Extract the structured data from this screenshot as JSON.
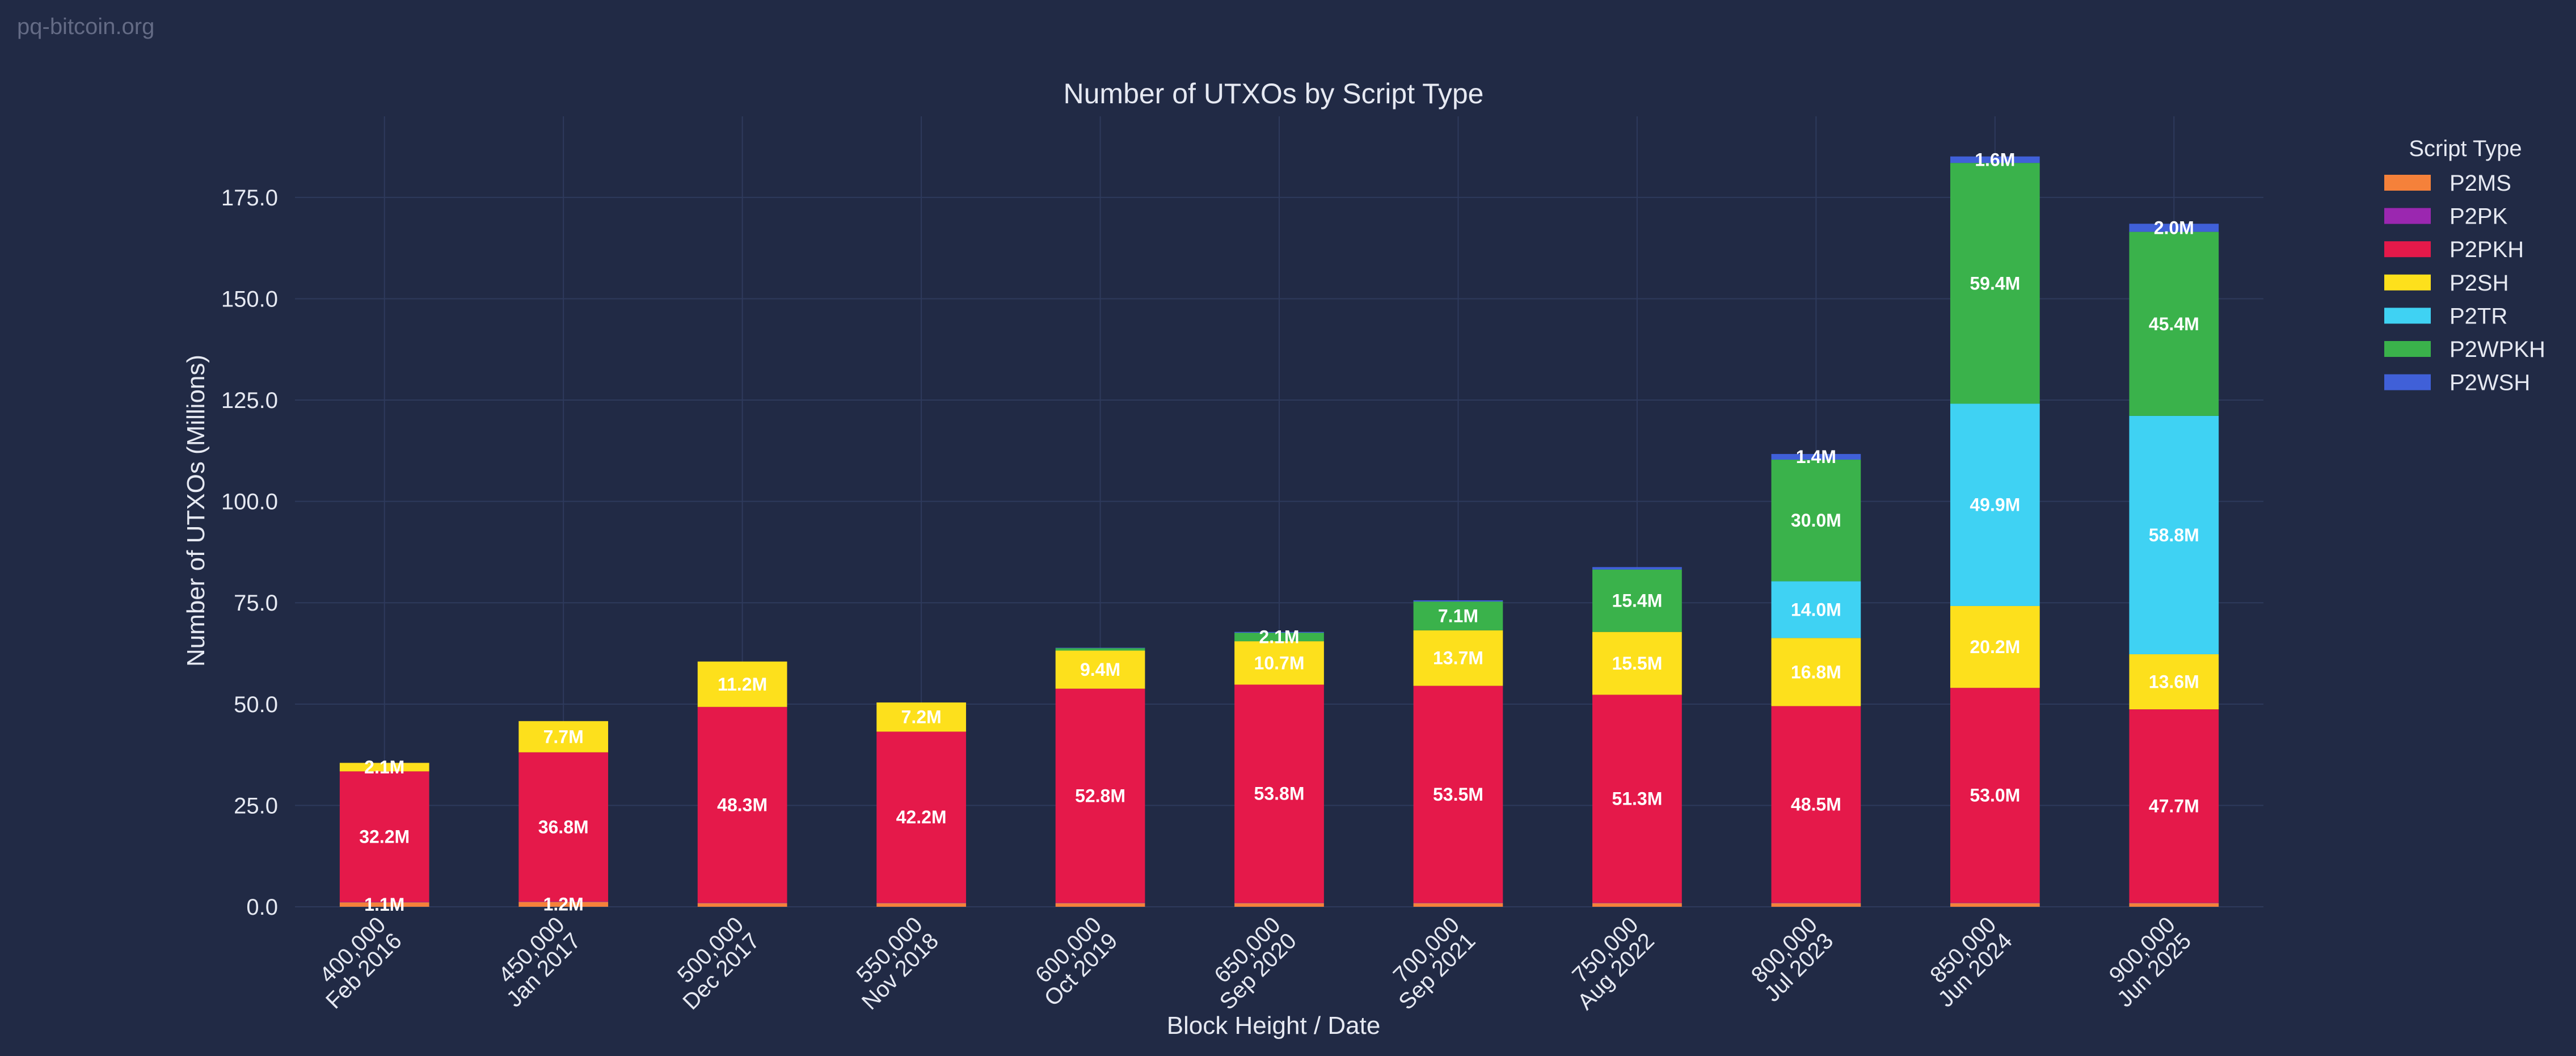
{
  "site": "pq-bitcoin.org",
  "chart_data": {
    "type": "bar",
    "stacked": true,
    "title": "Number of UTXOs by Script Type",
    "xlabel": "Block Height / Date",
    "ylabel": "Number of UTXOs (Millions)",
    "ylim": [
      0,
      195
    ],
    "yticks": [
      0,
      25,
      50,
      75,
      100,
      125,
      150,
      175
    ],
    "ytick_labels": [
      "0.0",
      "25.0",
      "50.0",
      "75.0",
      "100.0",
      "125.0",
      "150.0",
      "175.0"
    ],
    "grid": true,
    "legend_title": "Script Type",
    "legend_position": "top-right",
    "categories": [
      {
        "height": "400,000",
        "date": "Feb 2016"
      },
      {
        "height": "450,000",
        "date": "Jan 2017"
      },
      {
        "height": "500,000",
        "date": "Dec 2017"
      },
      {
        "height": "550,000",
        "date": "Nov 2018"
      },
      {
        "height": "600,000",
        "date": "Oct 2019"
      },
      {
        "height": "650,000",
        "date": "Sep 2020"
      },
      {
        "height": "700,000",
        "date": "Sep 2021"
      },
      {
        "height": "750,000",
        "date": "Aug 2022"
      },
      {
        "height": "800,000",
        "date": "Jul 2023"
      },
      {
        "height": "850,000",
        "date": "Jun 2024"
      },
      {
        "height": "900,000",
        "date": "Jun 2025"
      }
    ],
    "series": [
      {
        "name": "P2MS",
        "color": "#f5813a",
        "values": [
          1.1,
          1.2,
          0.9,
          0.9,
          0.9,
          0.9,
          0.9,
          0.9,
          0.9,
          0.9,
          0.9
        ],
        "labels": [
          "1.1M",
          "1.2M",
          "",
          "",
          "",
          "",
          "",
          "",
          "",
          "",
          ""
        ]
      },
      {
        "name": "P2PK",
        "color": "#9b27b0",
        "values": [
          0.1,
          0.1,
          0.1,
          0.1,
          0.1,
          0.1,
          0.1,
          0.1,
          0.1,
          0.1,
          0.1
        ],
        "labels": [
          "",
          "",
          "",
          "",
          "",
          "",
          "",
          "",
          "",
          "",
          ""
        ]
      },
      {
        "name": "P2PKH",
        "color": "#e5194a",
        "values": [
          32.2,
          36.8,
          48.3,
          42.2,
          52.8,
          53.8,
          53.5,
          51.3,
          48.5,
          53.0,
          47.7
        ],
        "labels": [
          "32.2M",
          "36.8M",
          "48.3M",
          "42.2M",
          "52.8M",
          "53.8M",
          "53.5M",
          "51.3M",
          "48.5M",
          "53.0M",
          "47.7M"
        ]
      },
      {
        "name": "P2SH",
        "color": "#fde01c",
        "values": [
          2.1,
          7.7,
          11.2,
          7.2,
          9.4,
          10.7,
          13.7,
          15.5,
          16.8,
          20.2,
          13.6
        ],
        "labels": [
          "2.1M",
          "7.7M",
          "11.2M",
          "7.2M",
          "9.4M",
          "10.7M",
          "13.7M",
          "15.5M",
          "16.8M",
          "20.2M",
          "13.6M"
        ]
      },
      {
        "name": "P2TR",
        "color": "#3fd2f3",
        "values": [
          0,
          0,
          0,
          0,
          0,
          0,
          0,
          0,
          14.0,
          49.9,
          58.8
        ],
        "labels": [
          "",
          "",
          "",
          "",
          "",
          "",
          "",
          "",
          "14.0M",
          "49.9M",
          "58.8M"
        ]
      },
      {
        "name": "P2WPKH",
        "color": "#3ab24b",
        "values": [
          0,
          0,
          0,
          0,
          0.6,
          2.1,
          7.1,
          15.4,
          30.0,
          59.4,
          45.4
        ],
        "labels": [
          "",
          "",
          "",
          "",
          "",
          "2.1M",
          "7.1M",
          "15.4M",
          "30.0M",
          "59.4M",
          "45.4M"
        ]
      },
      {
        "name": "P2WSH",
        "color": "#4060d8",
        "values": [
          0,
          0,
          0,
          0,
          0.1,
          0.2,
          0.3,
          0.6,
          1.4,
          1.6,
          2.0
        ],
        "labels": [
          "",
          "",
          "",
          "",
          "",
          "",
          "",
          "",
          "1.4M",
          "1.6M",
          "2.0M"
        ]
      }
    ]
  }
}
